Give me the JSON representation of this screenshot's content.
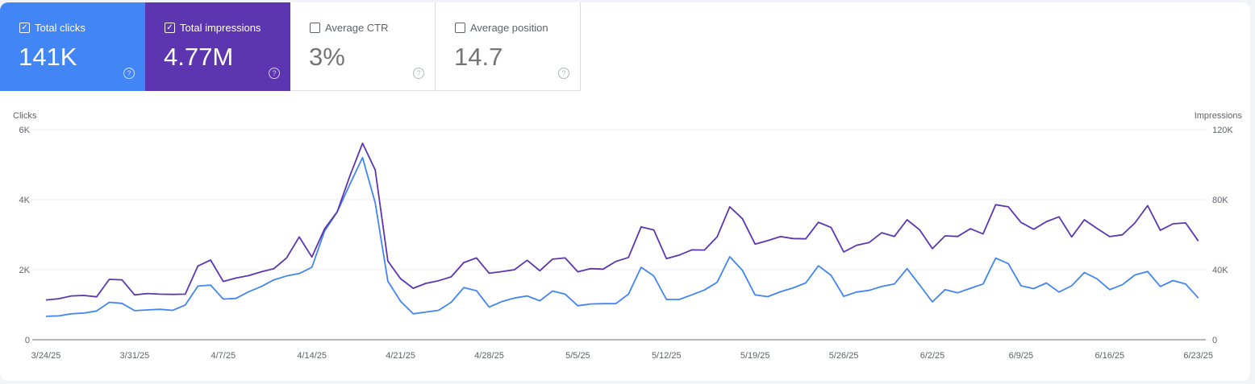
{
  "metrics": [
    {
      "label": "Total clicks",
      "value": "141K",
      "checked": true,
      "color": "#4285f4"
    },
    {
      "label": "Total impressions",
      "value": "4.77M",
      "checked": true,
      "color": "#5e35b1"
    },
    {
      "label": "Average CTR",
      "value": "3%",
      "checked": false
    },
    {
      "label": "Average position",
      "value": "14.7",
      "checked": false
    }
  ],
  "icons": {
    "checkbox": "check-icon",
    "help": "help-circle-icon"
  },
  "chart_data": {
    "type": "line",
    "xlabel": "",
    "ylabel_left": "Clicks",
    "ylabel_right": "Impressions",
    "ylim_left": [
      0,
      6000
    ],
    "ylim_right": [
      0,
      120000
    ],
    "yticks_left": [
      "0",
      "2K",
      "4K",
      "6K"
    ],
    "yticks_right": [
      "0",
      "40K",
      "80K",
      "120K"
    ],
    "xticks": [
      "3/24/25",
      "3/31/25",
      "4/7/25",
      "4/14/25",
      "4/21/25",
      "4/28/25",
      "5/5/25",
      "5/12/25",
      "5/19/25",
      "5/26/25",
      "6/2/25",
      "6/9/25",
      "6/16/25",
      "6/23/25"
    ],
    "grid": true,
    "x": [
      "3/24/25",
      "3/25/25",
      "3/26/25",
      "3/27/25",
      "3/28/25",
      "3/29/25",
      "3/30/25",
      "3/31/25",
      "4/1/25",
      "4/2/25",
      "4/3/25",
      "4/4/25",
      "4/5/25",
      "4/6/25",
      "4/7/25",
      "4/8/25",
      "4/9/25",
      "4/10/25",
      "4/11/25",
      "4/12/25",
      "4/13/25",
      "4/14/25",
      "4/15/25",
      "4/16/25",
      "4/17/25",
      "4/18/25",
      "4/19/25",
      "4/20/25",
      "4/21/25",
      "4/22/25",
      "4/23/25",
      "4/24/25",
      "4/25/25",
      "4/26/25",
      "4/27/25",
      "4/28/25",
      "4/29/25",
      "4/30/25",
      "5/1/25",
      "5/2/25",
      "5/3/25",
      "5/4/25",
      "5/5/25",
      "5/6/25",
      "5/7/25",
      "5/8/25",
      "5/9/25",
      "5/10/25",
      "5/11/25",
      "5/12/25",
      "5/13/25",
      "5/14/25",
      "5/15/25",
      "5/16/25",
      "5/17/25",
      "5/18/25",
      "5/19/25",
      "5/20/25",
      "5/21/25",
      "5/22/25",
      "5/23/25",
      "5/24/25",
      "5/25/25",
      "5/26/25",
      "5/27/25",
      "5/28/25",
      "5/29/25",
      "5/30/25",
      "5/31/25",
      "6/1/25",
      "6/2/25",
      "6/3/25",
      "6/4/25",
      "6/5/25",
      "6/6/25",
      "6/7/25",
      "6/8/25",
      "6/9/25",
      "6/10/25",
      "6/11/25",
      "6/12/25",
      "6/13/25",
      "6/14/25",
      "6/15/25",
      "6/16/25",
      "6/17/25",
      "6/18/25",
      "6/19/25",
      "6/20/25",
      "6/21/25",
      "6/22/25",
      "6/23/25"
    ],
    "series": [
      {
        "name": "Clicks",
        "axis": "left",
        "color": "#4285f4",
        "values": [
          670,
          680,
          740,
          760,
          820,
          1070,
          1040,
          830,
          850,
          870,
          840,
          990,
          1530,
          1560,
          1160,
          1180,
          1370,
          1520,
          1710,
          1820,
          1890,
          2070,
          3100,
          3650,
          4440,
          5200,
          3910,
          1670,
          1100,
          740,
          790,
          840,
          1070,
          1490,
          1400,
          930,
          1090,
          1190,
          1250,
          1110,
          1390,
          1300,
          970,
          1020,
          1030,
          1030,
          1300,
          2070,
          1820,
          1150,
          1150,
          1280,
          1420,
          1640,
          2370,
          1980,
          1280,
          1230,
          1370,
          1480,
          1620,
          2110,
          1840,
          1240,
          1360,
          1410,
          1520,
          1590,
          2030,
          1560,
          1080,
          1430,
          1340,
          1470,
          1590,
          2330,
          2170,
          1540,
          1460,
          1620,
          1360,
          1540,
          1920,
          1740,
          1430,
          1570,
          1850,
          1950,
          1520,
          1690,
          1590,
          1190
        ]
      },
      {
        "name": "Impressions",
        "axis": "right",
        "color": "#5e35b1",
        "values": [
          22700,
          23400,
          25000,
          25300,
          24500,
          34500,
          34200,
          25600,
          26400,
          26000,
          25900,
          26000,
          42100,
          45500,
          33300,
          35200,
          36600,
          38800,
          40600,
          46700,
          58700,
          47200,
          63300,
          73100,
          93500,
          112200,
          97000,
          44900,
          34900,
          29400,
          32200,
          33700,
          35900,
          44100,
          46700,
          38000,
          38900,
          40000,
          45400,
          39400,
          46000,
          46700,
          38800,
          40600,
          40300,
          44700,
          47000,
          64400,
          62700,
          46300,
          48300,
          51300,
          51200,
          58700,
          75900,
          69100,
          54600,
          56600,
          58900,
          57800,
          57600,
          67100,
          64100,
          50100,
          53900,
          55500,
          61100,
          59000,
          68500,
          62700,
          52000,
          59300,
          59000,
          63400,
          60400,
          77100,
          75900,
          67000,
          63100,
          67400,
          70200,
          58700,
          68500,
          63600,
          58900,
          59900,
          66700,
          76600,
          62500,
          66200,
          66700,
          56400
        ]
      }
    ]
  }
}
